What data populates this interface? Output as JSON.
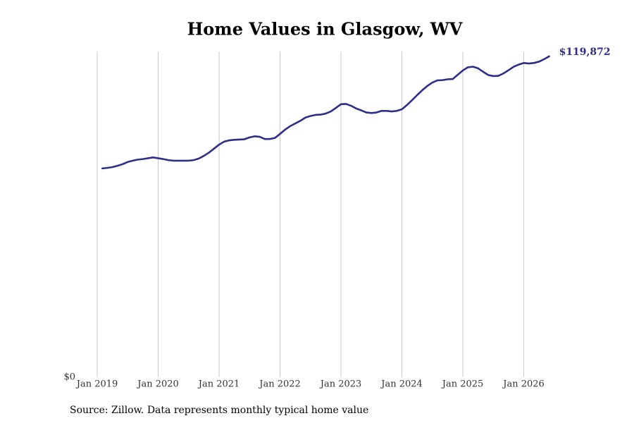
{
  "chart_data": {
    "type": "line",
    "title": "Home Values in Glasgow, WV",
    "source": "Source: Zillow. Data represents monthly typical home value",
    "color": "#2e2d88",
    "grid": true,
    "x": [
      "2019-02",
      "2019-03",
      "2019-04",
      "2019-05",
      "2019-06",
      "2019-07",
      "2019-08",
      "2019-09",
      "2019-10",
      "2019-11",
      "2019-12",
      "2020-01",
      "2020-02",
      "2020-03",
      "2020-04",
      "2020-05",
      "2020-06",
      "2020-07",
      "2020-08",
      "2020-09",
      "2020-10",
      "2020-11",
      "2020-12",
      "2021-01",
      "2021-02",
      "2021-03",
      "2021-04",
      "2021-05",
      "2021-06",
      "2021-07",
      "2021-08",
      "2021-09",
      "2021-10",
      "2021-11",
      "2021-12",
      "2022-01",
      "2022-02",
      "2022-03",
      "2022-04",
      "2022-05",
      "2022-06",
      "2022-07",
      "2022-08",
      "2022-09",
      "2022-10",
      "2022-11",
      "2022-12",
      "2023-01",
      "2023-02",
      "2023-03",
      "2023-04",
      "2023-05",
      "2023-06",
      "2023-07",
      "2023-08",
      "2023-09",
      "2023-10",
      "2023-11",
      "2023-12",
      "2024-01",
      "2024-02",
      "2024-03",
      "2024-04",
      "2024-05",
      "2024-06",
      "2024-07",
      "2024-08",
      "2024-09",
      "2024-10",
      "2024-11",
      "2024-12",
      "2025-01",
      "2025-02",
      "2025-03",
      "2025-04",
      "2025-05",
      "2025-06",
      "2025-07",
      "2025-08",
      "2025-09",
      "2025-10",
      "2025-11",
      "2025-12",
      "2026-01",
      "2026-02",
      "2026-03",
      "2026-04",
      "2026-05",
      "2026-06"
    ],
    "values": [
      78000,
      78200,
      78500,
      79000,
      79600,
      80400,
      80900,
      81300,
      81500,
      81800,
      82100,
      81800,
      81500,
      81100,
      80900,
      80900,
      80900,
      80900,
      81100,
      81700,
      82700,
      83900,
      85400,
      86900,
      88000,
      88500,
      88700,
      88800,
      88900,
      89600,
      90000,
      89800,
      89000,
      89000,
      89400,
      90900,
      92500,
      93800,
      94800,
      95800,
      97000,
      97600,
      98000,
      98100,
      98500,
      99300,
      100600,
      102000,
      102100,
      101400,
      100400,
      99700,
      98900,
      98700,
      98900,
      99500,
      99500,
      99300,
      99500,
      100100,
      101700,
      103500,
      105400,
      107200,
      108800,
      110100,
      110900,
      111000,
      111300,
      111400,
      113000,
      114600,
      115800,
      116000,
      115400,
      114100,
      112900,
      112500,
      112600,
      113500,
      114700,
      116000,
      116800,
      117400,
      117200,
      117400,
      117900,
      118800,
      119872
    ],
    "value_labels": [
      null,
      null,
      null,
      null,
      null,
      null,
      null,
      null,
      null,
      null,
      null,
      null,
      null,
      null,
      null,
      null,
      null,
      null,
      null,
      null,
      null,
      null,
      null,
      null,
      null,
      null,
      null,
      null,
      null,
      null,
      null,
      null,
      null,
      null,
      null,
      null,
      null,
      null,
      null,
      null,
      null,
      null,
      null,
      null,
      null,
      null,
      null,
      null,
      null,
      null,
      null,
      null,
      null,
      null,
      null,
      null,
      null,
      null,
      null,
      null,
      null,
      null,
      null,
      null,
      null,
      null,
      null,
      null,
      null,
      null,
      null,
      null,
      null,
      null,
      null,
      null,
      null,
      null,
      null,
      null,
      null,
      null,
      null,
      null,
      null,
      null,
      null,
      null,
      "$119,872"
    ],
    "xlim": [
      "2018-08",
      "2026-08"
    ],
    "xticks": [
      {
        "value": "2019-01",
        "label": "Jan 2019"
      },
      {
        "value": "2020-01",
        "label": "Jan 2020"
      },
      {
        "value": "2021-01",
        "label": "Jan 2021"
      },
      {
        "value": "2022-01",
        "label": "Jan 2022"
      },
      {
        "value": "2023-01",
        "label": "Jan 2023"
      },
      {
        "value": "2024-01",
        "label": "Jan 2024"
      },
      {
        "value": "2025-01",
        "label": "Jan 2025"
      },
      {
        "value": "2026-01",
        "label": "Jan 2026"
      }
    ],
    "ylim": [
      0,
      121700
    ],
    "yticks": [
      {
        "value": 0,
        "label": "$0"
      }
    ]
  }
}
